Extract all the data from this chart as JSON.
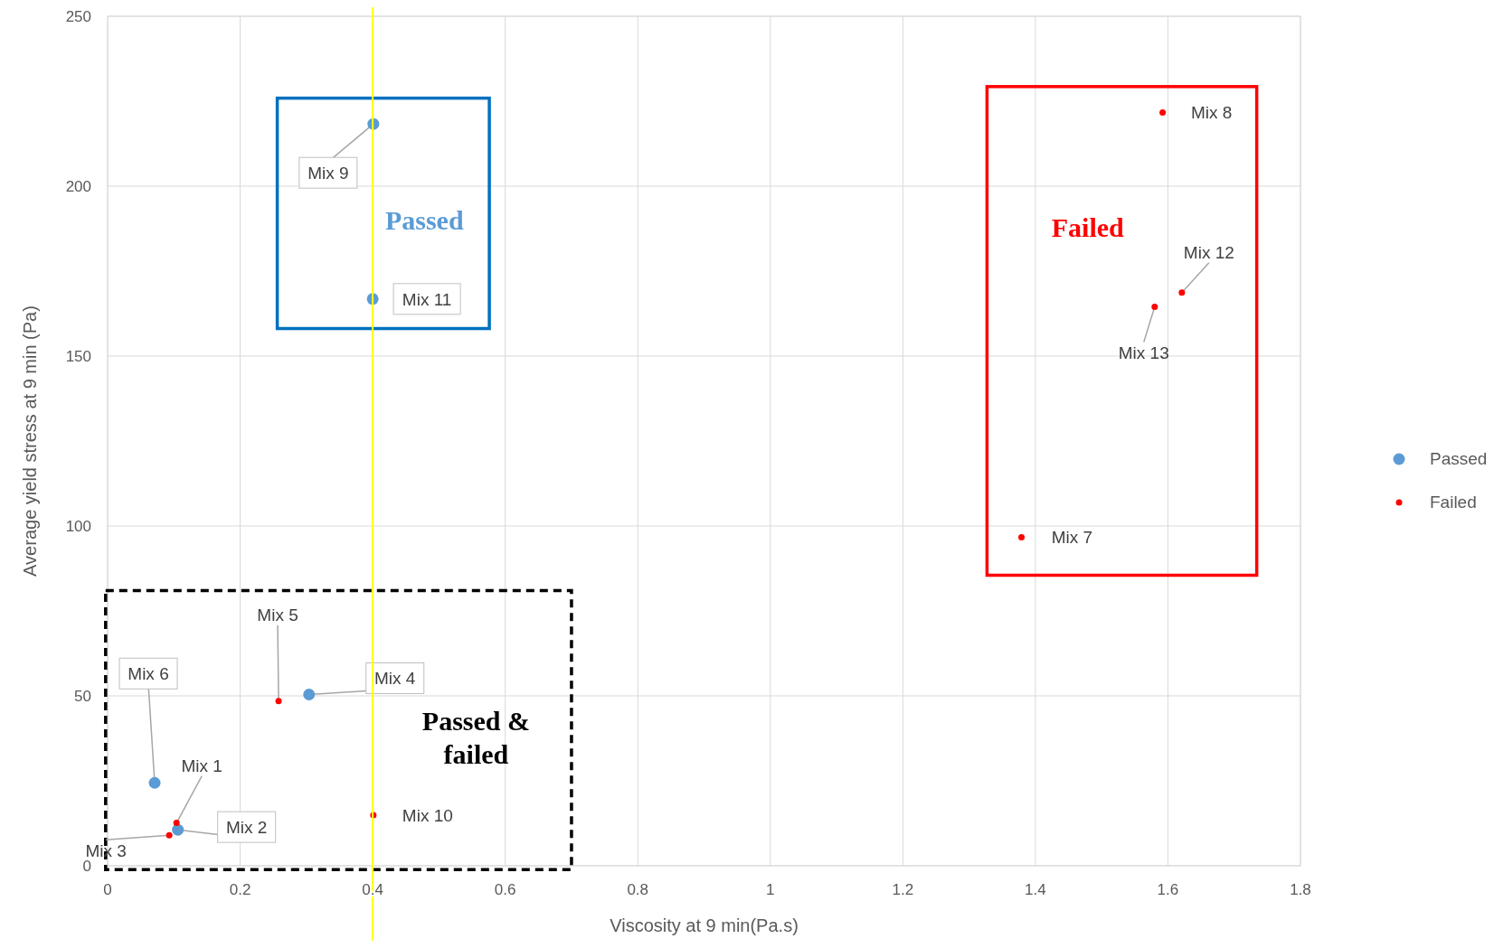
{
  "chart_data": {
    "type": "scatter",
    "xlabel": "Viscosity at 9 min(Pa.s)",
    "ylabel": "Average yield stress at 9 min (Pa)",
    "xlim": [
      0,
      1.8
    ],
    "xticks": [
      0,
      0.2,
      0.4,
      0.6,
      0.8,
      1,
      1.2,
      1.4,
      1.6,
      1.8
    ],
    "ylim": [
      0,
      250
    ],
    "yticks": [
      0,
      50,
      100,
      150,
      200,
      250
    ],
    "grid": true,
    "legend": "right",
    "marker": "circle",
    "series": [
      {
        "name": "Passed",
        "color": "#5b9bd5",
        "x": [
          0.401,
          0.4,
          0.304,
          0.071,
          0.106
        ],
        "values": [
          218.3,
          166.8,
          50.4,
          24.4,
          10.6
        ]
      },
      {
        "name": "Failed",
        "color": "#ff0000",
        "x": [
          1.592,
          1.621,
          1.58,
          1.379,
          0.258,
          0.401,
          0.104,
          0.093
        ],
        "values": [
          221.7,
          168.7,
          164.5,
          96.7,
          48.5,
          14.9,
          12.6,
          9.0
        ]
      }
    ],
    "ref_lines": [
      {
        "axis": "x",
        "value": 0.4,
        "color": "#ffff00"
      }
    ],
    "annotations": [
      {
        "text": "Mix 9",
        "x": 0.401,
        "y": 218.3
      },
      {
        "text": "Mix 11",
        "x": 0.4,
        "y": 166.8
      },
      {
        "text": "Mix 4",
        "x": 0.304,
        "y": 50.4
      },
      {
        "text": "Mix 6",
        "x": 0.071,
        "y": 24.4
      },
      {
        "text": "Mix 2",
        "x": 0.106,
        "y": 10.6
      },
      {
        "text": "Mix 8",
        "x": 1.592,
        "y": 221.7
      },
      {
        "text": "Mix 12",
        "x": 1.621,
        "y": 168.7
      },
      {
        "text": "Mix 13",
        "x": 1.58,
        "y": 164.5
      },
      {
        "text": "Mix 7",
        "x": 1.379,
        "y": 96.7
      },
      {
        "text": "Mix 5",
        "x": 0.258,
        "y": 48.5
      },
      {
        "text": "Mix 10",
        "x": 0.401,
        "y": 14.9
      },
      {
        "text": "Mix 1",
        "x": 0.104,
        "y": 12.6
      },
      {
        "text": "Mix 3",
        "x": 0.093,
        "y": 9.0
      },
      "Passed",
      "Failed",
      "Passed & failed"
    ]
  }
}
